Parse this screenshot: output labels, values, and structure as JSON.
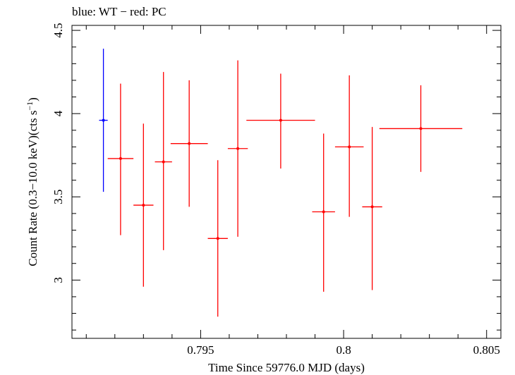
{
  "chart_data": {
    "type": "scatter",
    "title": "blue: WT − red: PC",
    "xlabel": "Time Since 59776.0 MJD (days)",
    "ylabel_main": "Count Rate (0.3−10.0 keV)(cts s",
    "ylabel_sup": "−1",
    "ylabel_end": ")",
    "xlim": [
      0.7905,
      0.8055
    ],
    "ylim": [
      2.65,
      4.53
    ],
    "xticks": [
      0.795,
      0.8,
      0.805
    ],
    "xtick_labels": [
      "0.795",
      "0.8",
      "0.805"
    ],
    "yticks": [
      3,
      3.5,
      4,
      4.5
    ],
    "ytick_labels": [
      "3",
      "3.5",
      "4",
      "4.5"
    ],
    "grid": false,
    "series": [
      {
        "name": "WT",
        "color": "#0000ff",
        "points": [
          {
            "x": 0.7916,
            "y": 3.96,
            "xerr": 0.00015,
            "ylo": 3.53,
            "yhi": 4.39
          }
        ]
      },
      {
        "name": "PC",
        "color": "#ff0000",
        "points": [
          {
            "x": 0.7922,
            "y": 3.73,
            "xerr": 0.00045,
            "ylo": 3.27,
            "yhi": 4.18
          },
          {
            "x": 0.793,
            "y": 3.45,
            "xerr": 0.00035,
            "ylo": 2.96,
            "yhi": 3.94
          },
          {
            "x": 0.7937,
            "y": 3.71,
            "xerr": 0.0003,
            "ylo": 3.18,
            "yhi": 4.25
          },
          {
            "x": 0.7946,
            "y": 3.82,
            "xerr": 0.00065,
            "ylo": 3.44,
            "yhi": 4.2
          },
          {
            "x": 0.7956,
            "y": 3.25,
            "xerr": 0.00035,
            "ylo": 2.78,
            "yhi": 3.72
          },
          {
            "x": 0.7963,
            "y": 3.79,
            "xerr": 0.00035,
            "ylo": 3.26,
            "yhi": 4.32
          },
          {
            "x": 0.7978,
            "y": 3.96,
            "xerr": 0.0012,
            "ylo": 3.67,
            "yhi": 4.24
          },
          {
            "x": 0.7993,
            "y": 3.41,
            "xerr": 0.0004,
            "ylo": 2.93,
            "yhi": 3.88
          },
          {
            "x": 0.8002,
            "y": 3.8,
            "xerr": 0.0005,
            "ylo": 3.38,
            "yhi": 4.23
          },
          {
            "x": 0.801,
            "y": 3.44,
            "xerr": 0.00035,
            "ylo": 2.94,
            "yhi": 3.92
          },
          {
            "x": 0.8027,
            "y": 3.91,
            "xerr": 0.00145,
            "ylo": 3.65,
            "yhi": 4.17
          }
        ]
      }
    ]
  }
}
